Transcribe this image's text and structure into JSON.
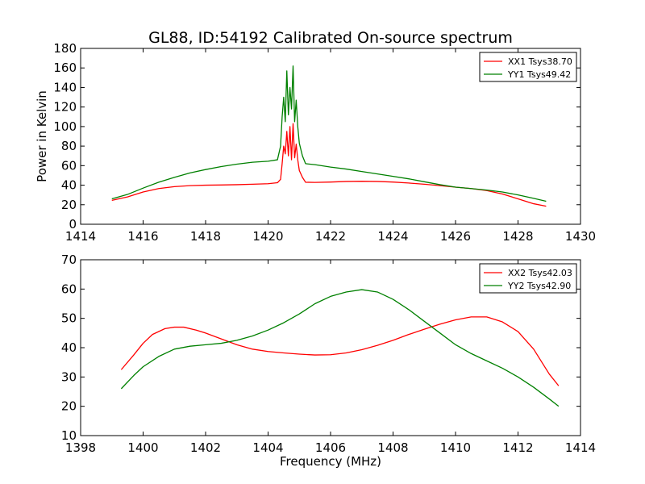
{
  "chart_data": [
    {
      "type": "line",
      "title": "GL88, ID:54192 Calibrated On-source spectrum",
      "xlabel": "",
      "ylabel": "Power in Kelvin",
      "xlim": [
        1414,
        1430
      ],
      "ylim": [
        0,
        180
      ],
      "xticks": [
        1414,
        1416,
        1418,
        1420,
        1422,
        1424,
        1426,
        1428,
        1430
      ],
      "yticks": [
        0,
        20,
        40,
        60,
        80,
        100,
        120,
        140,
        160,
        180
      ],
      "legend_position": "top-right",
      "series": [
        {
          "name": "XX1 Tsys38.70",
          "color": "#ff0000",
          "points": [
            [
              1415.0,
              24.5
            ],
            [
              1415.5,
              28
            ],
            [
              1416.0,
              33
            ],
            [
              1416.5,
              36.5
            ],
            [
              1417.0,
              38.5
            ],
            [
              1417.5,
              39.5
            ],
            [
              1418.0,
              40
            ],
            [
              1418.5,
              40.2
            ],
            [
              1419.0,
              40.5
            ],
            [
              1419.5,
              41
            ],
            [
              1420.0,
              41.5
            ],
            [
              1420.3,
              42.5
            ],
            [
              1420.4,
              46
            ],
            [
              1420.45,
              62
            ],
            [
              1420.5,
              80
            ],
            [
              1420.55,
              72
            ],
            [
              1420.6,
              95
            ],
            [
              1420.65,
              70
            ],
            [
              1420.7,
              100
            ],
            [
              1420.75,
              66
            ],
            [
              1420.8,
              103
            ],
            [
              1420.85,
              68
            ],
            [
              1420.9,
              82
            ],
            [
              1420.95,
              66
            ],
            [
              1421.0,
              55
            ],
            [
              1421.1,
              48
            ],
            [
              1421.2,
              43
            ],
            [
              1421.5,
              42.8
            ],
            [
              1422.0,
              43.2
            ],
            [
              1422.5,
              43.8
            ],
            [
              1423.0,
              44
            ],
            [
              1423.5,
              43.8
            ],
            [
              1424.0,
              43.2
            ],
            [
              1424.5,
              42.2
            ],
            [
              1425.0,
              41
            ],
            [
              1425.5,
              39.5
            ],
            [
              1426.0,
              38
            ],
            [
              1426.5,
              36.5
            ],
            [
              1427.0,
              34.5
            ],
            [
              1427.5,
              31
            ],
            [
              1428.0,
              26
            ],
            [
              1428.5,
              21
            ],
            [
              1428.9,
              18.5
            ]
          ]
        },
        {
          "name": "YY1 Tsys49.42",
          "color": "#008000",
          "points": [
            [
              1415.0,
              26
            ],
            [
              1415.5,
              30.5
            ],
            [
              1416.0,
              37
            ],
            [
              1416.5,
              43
            ],
            [
              1417.0,
              48
            ],
            [
              1417.5,
              52.5
            ],
            [
              1418.0,
              56
            ],
            [
              1418.5,
              59
            ],
            [
              1419.0,
              61.5
            ],
            [
              1419.5,
              63.5
            ],
            [
              1420.0,
              64.5
            ],
            [
              1420.3,
              66
            ],
            [
              1420.4,
              80
            ],
            [
              1420.45,
              110
            ],
            [
              1420.5,
              130
            ],
            [
              1420.55,
              105
            ],
            [
              1420.6,
              157
            ],
            [
              1420.65,
              112
            ],
            [
              1420.7,
              140
            ],
            [
              1420.75,
              118
            ],
            [
              1420.8,
              162
            ],
            [
              1420.85,
              105
            ],
            [
              1420.9,
              127
            ],
            [
              1420.95,
              100
            ],
            [
              1421.0,
              83
            ],
            [
              1421.1,
              70
            ],
            [
              1421.2,
              62
            ],
            [
              1421.5,
              61
            ],
            [
              1422.0,
              58.5
            ],
            [
              1422.5,
              56.5
            ],
            [
              1423.0,
              54
            ],
            [
              1423.5,
              51.5
            ],
            [
              1424.0,
              49
            ],
            [
              1424.5,
              46.5
            ],
            [
              1425.0,
              43.5
            ],
            [
              1425.5,
              40.5
            ],
            [
              1426.0,
              38
            ],
            [
              1426.5,
              36.5
            ],
            [
              1427.0,
              35
            ],
            [
              1427.5,
              33
            ],
            [
              1428.0,
              30
            ],
            [
              1428.5,
              26.5
            ],
            [
              1428.9,
              23.5
            ]
          ]
        }
      ]
    },
    {
      "type": "line",
      "title": "",
      "xlabel": "Frequency (MHz)",
      "ylabel": "",
      "xlim": [
        1398,
        1414
      ],
      "ylim": [
        10,
        70
      ],
      "xticks": [
        1398,
        1400,
        1402,
        1404,
        1406,
        1408,
        1410,
        1412,
        1414
      ],
      "yticks": [
        10,
        20,
        30,
        40,
        50,
        60,
        70
      ],
      "legend_position": "top-right",
      "series": [
        {
          "name": "XX2 Tsys42.03",
          "color": "#ff0000",
          "points": [
            [
              1399.3,
              32.5
            ],
            [
              1399.7,
              37.5
            ],
            [
              1400.0,
              41.5
            ],
            [
              1400.3,
              44.5
            ],
            [
              1400.7,
              46.5
            ],
            [
              1401.0,
              47
            ],
            [
              1401.3,
              47
            ],
            [
              1401.7,
              46
            ],
            [
              1402.0,
              45
            ],
            [
              1402.5,
              43
            ],
            [
              1403.0,
              41
            ],
            [
              1403.5,
              39.5
            ],
            [
              1404.0,
              38.7
            ],
            [
              1404.5,
              38.2
            ],
            [
              1405.0,
              37.8
            ],
            [
              1405.5,
              37.5
            ],
            [
              1406.0,
              37.6
            ],
            [
              1406.5,
              38.2
            ],
            [
              1407.0,
              39.3
            ],
            [
              1407.5,
              40.8
            ],
            [
              1408.0,
              42.5
            ],
            [
              1408.5,
              44.5
            ],
            [
              1409.0,
              46.3
            ],
            [
              1409.5,
              48
            ],
            [
              1410.0,
              49.5
            ],
            [
              1410.5,
              50.5
            ],
            [
              1411.0,
              50.5
            ],
            [
              1411.5,
              48.8
            ],
            [
              1412.0,
              45.5
            ],
            [
              1412.5,
              39.5
            ],
            [
              1413.0,
              31
            ],
            [
              1413.3,
              27
            ]
          ]
        },
        {
          "name": "YY2 Tsys42.90",
          "color": "#008000",
          "points": [
            [
              1399.3,
              26
            ],
            [
              1399.7,
              30.5
            ],
            [
              1400.0,
              33.5
            ],
            [
              1400.5,
              37
            ],
            [
              1401.0,
              39.5
            ],
            [
              1401.5,
              40.5
            ],
            [
              1402.0,
              41
            ],
            [
              1402.5,
              41.5
            ],
            [
              1403.0,
              42.5
            ],
            [
              1403.5,
              44
            ],
            [
              1404.0,
              46
            ],
            [
              1404.5,
              48.5
            ],
            [
              1405.0,
              51.5
            ],
            [
              1405.5,
              55
            ],
            [
              1406.0,
              57.5
            ],
            [
              1406.5,
              59
            ],
            [
              1407.0,
              59.8
            ],
            [
              1407.5,
              59
            ],
            [
              1408.0,
              56.5
            ],
            [
              1408.5,
              53
            ],
            [
              1409.0,
              49
            ],
            [
              1409.5,
              45
            ],
            [
              1410.0,
              41
            ],
            [
              1410.5,
              38
            ],
            [
              1411.0,
              35.5
            ],
            [
              1411.5,
              33
            ],
            [
              1412.0,
              30
            ],
            [
              1412.5,
              26.5
            ],
            [
              1413.0,
              22.5
            ],
            [
              1413.3,
              20
            ]
          ]
        }
      ]
    }
  ]
}
